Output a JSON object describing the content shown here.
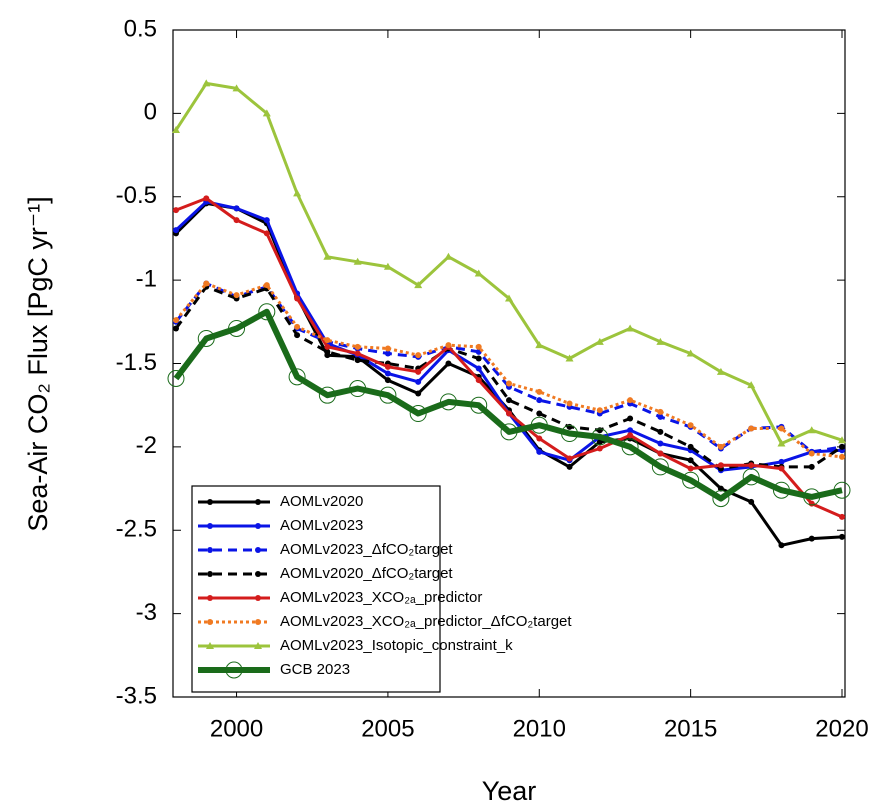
{
  "chart_data": {
    "type": "line",
    "xlabel": "Year",
    "ylabel": "Sea-Air CO₂ Flux [PgC yr⁻¹]",
    "x": [
      1998,
      1999,
      2000,
      2001,
      2002,
      2003,
      2004,
      2005,
      2006,
      2007,
      2008,
      2009,
      2010,
      2011,
      2012,
      2013,
      2014,
      2015,
      2016,
      2017,
      2018,
      2019,
      2020
    ],
    "xlim": [
      1998,
      2020
    ],
    "xticks": [
      2000,
      2005,
      2010,
      2015,
      2020
    ],
    "ylim": [
      -3.5,
      0.5
    ],
    "yticks": [
      0.5,
      0,
      -0.5,
      -1,
      -1.5,
      -2,
      -2.5,
      -3,
      -3.5
    ],
    "series": [
      {
        "name": "AOMLv2020",
        "color": "#000000",
        "style": "solid",
        "marker": "dot",
        "values": [
          -0.72,
          -0.54,
          -0.57,
          -0.66,
          -1.1,
          -1.45,
          -1.46,
          -1.6,
          -1.68,
          -1.5,
          -1.58,
          -1.78,
          -2.02,
          -2.12,
          -1.97,
          -1.95,
          -2.04,
          -2.08,
          -2.25,
          -2.33,
          -2.59,
          -2.55,
          -2.54
        ]
      },
      {
        "name": "AOMLv2023",
        "color": "#0a14e6",
        "style": "solid",
        "marker": "dot",
        "values": [
          -0.7,
          -0.53,
          -0.57,
          -0.64,
          -1.08,
          -1.38,
          -1.45,
          -1.56,
          -1.61,
          -1.42,
          -1.53,
          -1.8,
          -2.03,
          -2.08,
          -1.94,
          -1.9,
          -1.98,
          -2.02,
          -2.14,
          -2.12,
          -2.09,
          -2.03,
          -2.02
        ]
      },
      {
        "name": "AOMLv2023_ΔfCO₂target",
        "color": "#0a14e6",
        "style": "dashed",
        "marker": "dot",
        "values": [
          -1.25,
          -1.02,
          -1.1,
          -1.04,
          -1.29,
          -1.37,
          -1.41,
          -1.44,
          -1.46,
          -1.4,
          -1.43,
          -1.64,
          -1.72,
          -1.76,
          -1.8,
          -1.74,
          -1.82,
          -1.88,
          -2.01,
          -1.89,
          -1.88,
          -2.03,
          -2.0
        ]
      },
      {
        "name": "AOMLv2020_ΔfCO₂target",
        "color": "#000000",
        "style": "dashed",
        "marker": "dot",
        "values": [
          -1.29,
          -1.04,
          -1.11,
          -1.05,
          -1.33,
          -1.43,
          -1.48,
          -1.5,
          -1.53,
          -1.41,
          -1.47,
          -1.72,
          -1.8,
          -1.88,
          -1.9,
          -1.83,
          -1.91,
          -2.0,
          -2.13,
          -2.1,
          -2.12,
          -2.12,
          -2.0
        ]
      },
      {
        "name": "AOMLv2023_XCO₂ₐ_predictor",
        "color": "#d41c1c",
        "style": "solid",
        "marker": "dot",
        "values": [
          -0.58,
          -0.51,
          -0.64,
          -0.72,
          -1.11,
          -1.4,
          -1.44,
          -1.52,
          -1.55,
          -1.4,
          -1.6,
          -1.8,
          -1.95,
          -2.07,
          -2.01,
          -1.93,
          -2.04,
          -2.13,
          -2.11,
          -2.11,
          -2.13,
          -2.34,
          -2.42
        ]
      },
      {
        "name": "AOMLv2023_XCO₂ₐ_predictor_ΔfCO₂target",
        "color": "#f07a22",
        "style": "dotted",
        "marker": "dot",
        "values": [
          -1.24,
          -1.02,
          -1.09,
          -1.03,
          -1.28,
          -1.36,
          -1.4,
          -1.41,
          -1.45,
          -1.39,
          -1.4,
          -1.62,
          -1.67,
          -1.74,
          -1.78,
          -1.72,
          -1.79,
          -1.87,
          -2.0,
          -1.89,
          -1.89,
          -2.04,
          -2.06
        ]
      },
      {
        "name": "AOMLv2023_Isotopic_constraint_k",
        "color": "#9cc43c",
        "style": "solid",
        "marker": "triangle",
        "values": [
          -0.1,
          0.18,
          0.15,
          0.0,
          -0.48,
          -0.86,
          -0.89,
          -0.92,
          -1.03,
          -0.86,
          -0.96,
          -1.11,
          -1.39,
          -1.47,
          -1.37,
          -1.29,
          -1.37,
          -1.44,
          -1.55,
          -1.63,
          -1.98,
          -1.9,
          -1.96
        ]
      },
      {
        "name": "GCB 2023",
        "color": "#1a6b1a",
        "style": "solid",
        "marker": "open-circle",
        "values": [
          -1.59,
          -1.35,
          -1.29,
          -1.19,
          -1.58,
          -1.69,
          -1.65,
          -1.69,
          -1.8,
          -1.73,
          -1.75,
          -1.91,
          -1.87,
          -1.92,
          -1.94,
          -2.0,
          -2.12,
          -2.2,
          -2.31,
          -2.18,
          -2.26,
          -2.3,
          -2.26
        ]
      }
    ]
  }
}
